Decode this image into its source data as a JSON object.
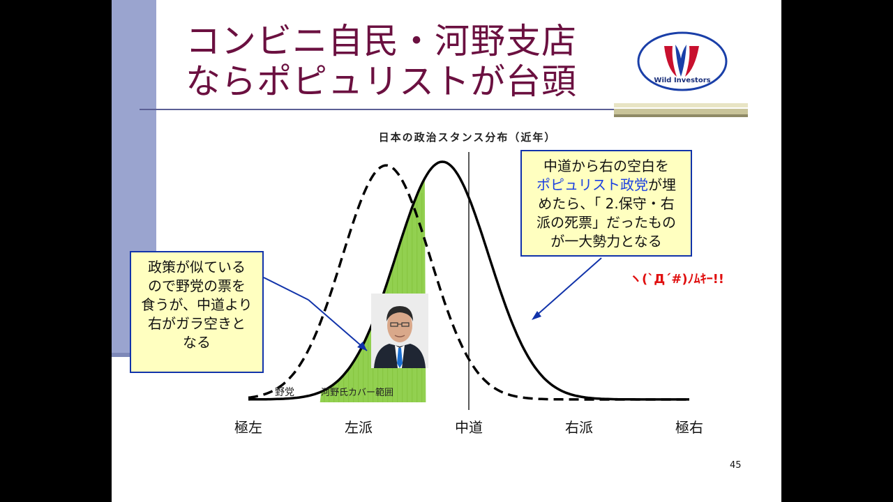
{
  "slide": {
    "title_line1": "コンビニ自民・河野支店",
    "title_line2": "ならポピュリストが台頭",
    "logo_text": "Wild Investors",
    "page_number": "45"
  },
  "chart": {
    "title": "日本の政治スタンス分布（近年）",
    "x_labels": [
      "極左",
      "左派",
      "中道",
      "右派",
      "極右"
    ],
    "label_opposition": "野党",
    "label_kono_range": "河野氏カバー範囲"
  },
  "callout_left": {
    "lines": [
      "政策が似ている",
      "ので野党の票を",
      "食うが、中道より",
      "右がガラ空きと",
      "なる"
    ]
  },
  "callout_right": {
    "line1": "中道から右の空白を",
    "line2_highlight": "ポピュリスト政党",
    "line2_rest": "が埋",
    "line3": "めたら、「 2.保守・右",
    "line4": "派の死票」だったもの",
    "line5": "が一大勢力となる"
  },
  "shout": "ヽ(`Д´#)ﾉﾑｷｰ!!",
  "chart_data": {
    "type": "line",
    "title": "日本の政治スタンス分布（近年）",
    "categories": [
      "極左",
      "左派",
      "中道",
      "右派",
      "極右"
    ],
    "x": [
      -2,
      -1,
      0,
      1,
      2
    ],
    "series": [
      {
        "name": "野党",
        "style": "dashed",
        "peak_x": -0.75,
        "sd": 0.4
      },
      {
        "name": "",
        "style": "solid",
        "peak_x": -0.24,
        "sd": 0.42
      }
    ],
    "shaded_range": {
      "label": "河野氏カバー範囲",
      "from": -1.35,
      "to": -0.39
    },
    "center_line_x": 0,
    "colors": {
      "shade": "#92d050",
      "curve": "#000000"
    }
  }
}
